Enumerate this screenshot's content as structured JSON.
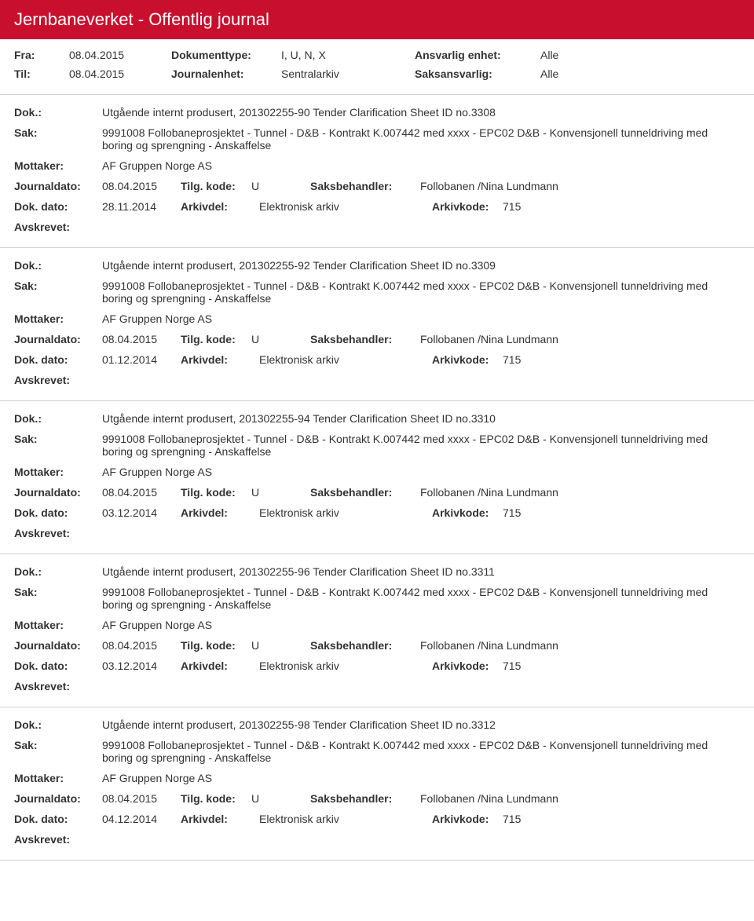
{
  "header": {
    "title": "Jernbaneverket - Offentlig journal"
  },
  "filters": {
    "row1": {
      "l1": "Fra:",
      "v1": "08.04.2015",
      "l2": "Dokumenttype:",
      "v2": "I, U, N, X",
      "l3": "Ansvarlig enhet:",
      "v3": "Alle"
    },
    "row2": {
      "l1": "Til:",
      "v1": "08.04.2015",
      "l2": "Journalenhet:",
      "v2": "Sentralarkiv",
      "l3": "Saksansvarlig:",
      "v3": "Alle"
    }
  },
  "labels": {
    "dok": "Dok.:",
    "sak": "Sak:",
    "mottaker": "Mottaker:",
    "journaldato": "Journaldato:",
    "tilgkode": "Tilg. kode:",
    "saksbehandler": "Saksbehandler:",
    "dokdato": "Dok. dato:",
    "arkivdel": "Arkivdel:",
    "arkivkode": "Arkivkode:",
    "avskrevet": "Avskrevet:"
  },
  "common": {
    "sak_text": "9991008 Follobaneprosjektet - Tunnel - D&B - Kontrakt K.007442 med xxxx - EPC02 D&B - Konvensjonell tunneldriving med boring og sprengning - Anskaffelse",
    "mottaker": "AF Gruppen Norge AS",
    "journaldato": "08.04.2015",
    "tilgkode": "U",
    "saksbehandler": "Follobanen /Nina Lundmann",
    "arkivdel": "Elektronisk arkiv",
    "arkivkode": "715"
  },
  "entries": [
    {
      "dok": "Utgående internt produsert, 201302255-90 Tender Clarification Sheet ID no.3308",
      "dokdato": "28.11.2014"
    },
    {
      "dok": "Utgående internt produsert, 201302255-92 Tender Clarification Sheet ID no.3309",
      "dokdato": "01.12.2014"
    },
    {
      "dok": "Utgående internt produsert, 201302255-94 Tender Clarification Sheet ID no.3310",
      "dokdato": "03.12.2014"
    },
    {
      "dok": "Utgående internt produsert, 201302255-96 Tender Clarification Sheet ID no.3311",
      "dokdato": "03.12.2014"
    },
    {
      "dok": "Utgående internt produsert, 201302255-98 Tender Clarification Sheet ID no.3312",
      "dokdato": "04.12.2014"
    }
  ]
}
